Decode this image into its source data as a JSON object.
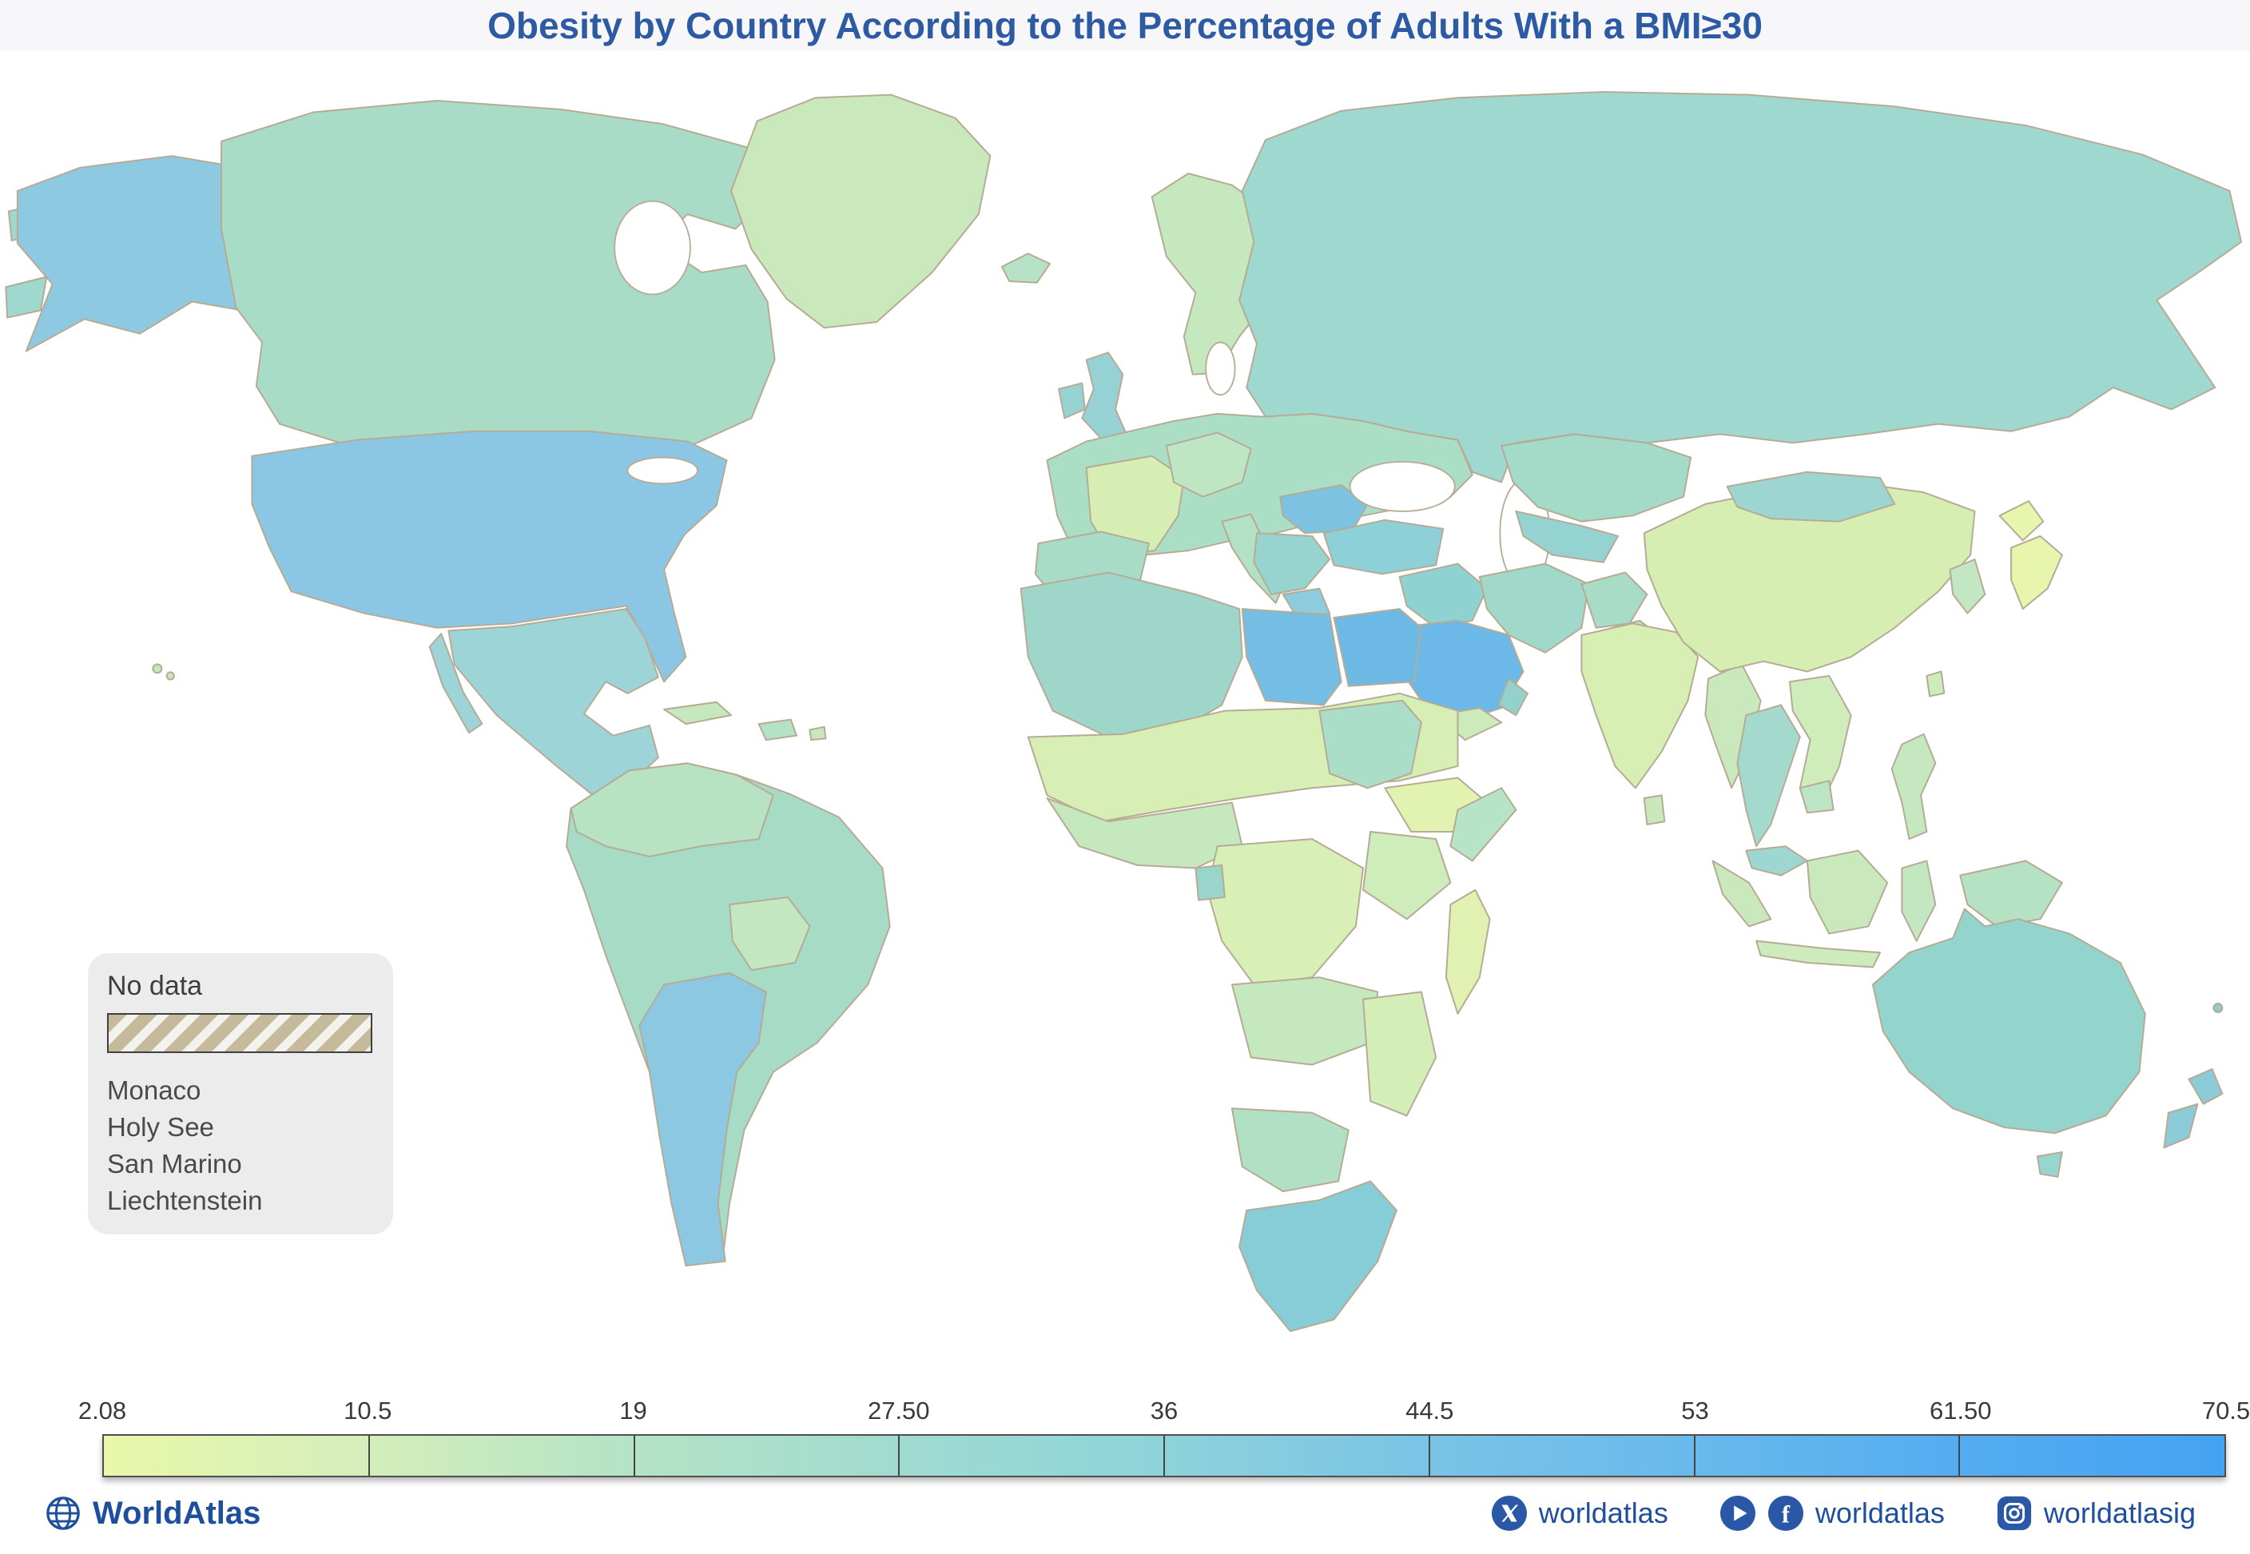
{
  "title": "Obesity by Country According to the Percentage of Adults With a BMI≥30",
  "no_data": {
    "label": "No data",
    "countries": [
      "Monaco",
      "Holy See",
      "San Marino",
      "Liechtenstein"
    ],
    "hatch_color": "#c6ba9d"
  },
  "scale": {
    "ticks": [
      "2.08",
      "10.5",
      "19",
      "27.50",
      "36",
      "44.5",
      "53",
      "61.50",
      "70.5"
    ],
    "colors": [
      "#e9f7aa",
      "#d4eebb",
      "#b4e3c6",
      "#a0dbd0",
      "#8ed2da",
      "#79c4e6",
      "#68b9ec",
      "#55acf0",
      "#44a3f2"
    ]
  },
  "footer": {
    "brand": "WorldAtlas",
    "brand_color": "#1d4f9c",
    "socials": [
      {
        "icons": [
          "x-icon"
        ],
        "handle": "worldatlas"
      },
      {
        "icons": [
          "youtube-icon",
          "facebook-icon"
        ],
        "handle": "worldatlas"
      },
      {
        "icons": [
          "instagram-icon"
        ],
        "handle": "worldatlasig"
      }
    ]
  },
  "chart_data": {
    "type": "choropleth",
    "title": "Obesity by Country According to the Percentage of Adults With a BMI≥30",
    "metric": "Percentage of adults with a BMI ≥ 30",
    "scale_min": 2.08,
    "scale_max": 70.5,
    "scale_ticks": [
      2.08,
      10.5,
      19,
      27.5,
      36,
      44.5,
      53,
      61.5,
      70.5
    ],
    "color_ramp": [
      "#e9f7aa",
      "#d4eebb",
      "#b4e3c6",
      "#a0dbd0",
      "#8ed2da",
      "#79c4e6",
      "#68b9ec",
      "#55acf0",
      "#44a3f2"
    ],
    "legend_position": "bottom",
    "no_data_countries": [
      "Monaco",
      "Holy See",
      "San Marino",
      "Liechtenstein"
    ]
  }
}
